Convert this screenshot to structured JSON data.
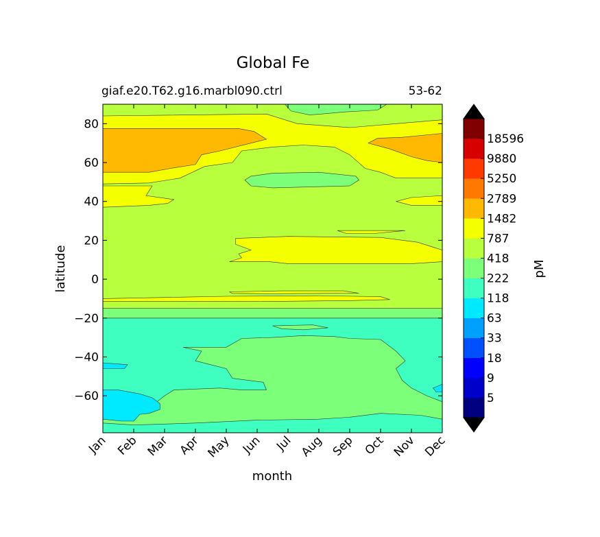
{
  "chart_data": {
    "type": "contourf",
    "title": "Global Fe",
    "subtitle_left": "giaf.e20.T62.g16.marbl090.ctrl",
    "subtitle_right": "53-62",
    "xlabel": "month",
    "ylabel": "latitude",
    "x_categories": [
      "Jan",
      "Feb",
      "Mar",
      "Apr",
      "May",
      "Jun",
      "Jul",
      "Aug",
      "Sep",
      "Oct",
      "Nov",
      "Dec"
    ],
    "xlim": [
      1,
      12
    ],
    "ylim": [
      -79,
      90
    ],
    "y_ticks": [
      80,
      60,
      40,
      20,
      0,
      -20,
      -40,
      -60
    ],
    "y_tick_labels": [
      "80",
      "60",
      "40",
      "20",
      "0",
      "−20",
      "−40",
      "−60"
    ],
    "colorbar": {
      "label": "pM",
      "extend": "both",
      "levels": [
        5,
        9,
        18,
        33,
        63,
        118,
        222,
        418,
        787,
        1482,
        2789,
        5250,
        9880,
        18596
      ],
      "level_labels": [
        "5",
        "9",
        "18",
        "33",
        "63",
        "118",
        "222",
        "418",
        "787",
        "1482",
        "2789",
        "5250",
        "9880",
        "18596"
      ],
      "colors": [
        "#000080",
        "#0000cd",
        "#0000ff",
        "#0050ff",
        "#00a0ff",
        "#00eaff",
        "#3fffc0",
        "#7cff79",
        "#b8ff3d",
        "#f4ff00",
        "#ffb900",
        "#ff7800",
        "#ff3a00",
        "#d60000",
        "#800000"
      ],
      "under_color": "#000000",
      "over_color": "#000000"
    },
    "regions": [
      {
        "band": "418-787",
        "desc": "background field, most latitudes",
        "value": 600
      },
      {
        "band": "118-222",
        "desc": "southern ocean band",
        "lat_range": [
          -79,
          -20
        ],
        "value": 170
      },
      {
        "band": "222-418",
        "desc": "southern ocean interior tongue",
        "lat_range": [
          -72,
          -29
        ],
        "value": 300
      },
      {
        "band": "63-118",
        "desc": "Jan-Feb high southern latitudes",
        "lat_range": [
          -73,
          -57
        ],
        "value": 90
      },
      {
        "band": "1482-2789",
        "desc": "northern high latitudes winter",
        "lat_range": [
          54,
          77
        ],
        "value": 2000
      },
      {
        "band": "787-1482",
        "desc": "tropical north summer",
        "lat_range": [
          8,
          22
        ],
        "value": 1000
      },
      {
        "band": "222-418",
        "desc": "arctic summer",
        "lat_range": [
          82,
          90
        ],
        "value": 300
      }
    ]
  }
}
